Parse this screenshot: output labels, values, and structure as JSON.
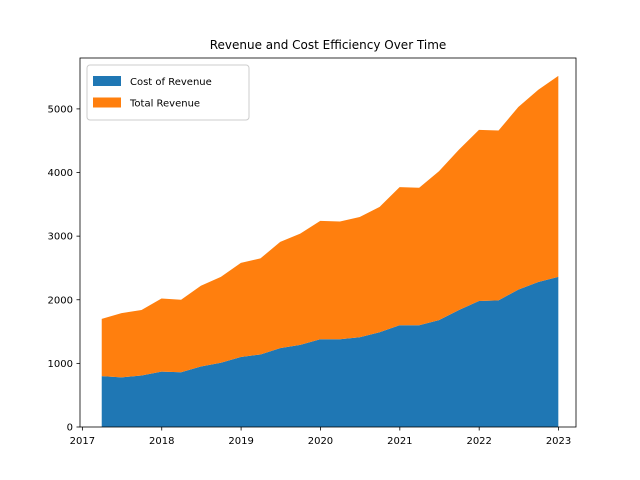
{
  "chart_data": {
    "type": "area",
    "stacked": true,
    "title": "Revenue and Cost Efficiency Over Time",
    "xlabel": "",
    "ylabel": "",
    "xlim": [
      2016.97,
      2023.22
    ],
    "ylim": [
      0,
      5800
    ],
    "x_ticks": [
      2017,
      2018,
      2019,
      2020,
      2021,
      2022,
      2023
    ],
    "y_ticks": [
      0,
      1000,
      2000,
      3000,
      4000,
      5000
    ],
    "legend_position": "upper-left",
    "grid": false,
    "x": [
      "2017-03-31",
      "2017-06-30",
      "2017-09-30",
      "2017-12-31",
      "2018-03-31",
      "2018-06-30",
      "2018-09-30",
      "2018-12-31",
      "2019-03-31",
      "2019-06-30",
      "2019-09-30",
      "2019-12-31",
      "2020-03-31",
      "2020-06-30",
      "2020-09-30",
      "2020-12-31",
      "2021-03-31",
      "2021-06-30",
      "2021-09-30",
      "2021-12-31",
      "2022-03-31",
      "2022-06-30",
      "2022-09-30",
      "2022-12-31"
    ],
    "series": [
      {
        "name": "Cost of Revenue",
        "color": "#1f77b4",
        "values": [
          800,
          780,
          810,
          870,
          860,
          950,
          1010,
          1100,
          1140,
          1240,
          1290,
          1380,
          1380,
          1410,
          1490,
          1600,
          1600,
          1680,
          1840,
          1980,
          1990,
          2160,
          2280,
          2360
        ]
      },
      {
        "name": "Total Revenue",
        "color": "#ff7f0e",
        "values": [
          900,
          1010,
          1030,
          1150,
          1140,
          1270,
          1350,
          1480,
          1510,
          1670,
          1750,
          1860,
          1850,
          1890,
          1970,
          2170,
          2160,
          2340,
          2520,
          2690,
          2670,
          2870,
          3020,
          3160
        ]
      }
    ]
  }
}
